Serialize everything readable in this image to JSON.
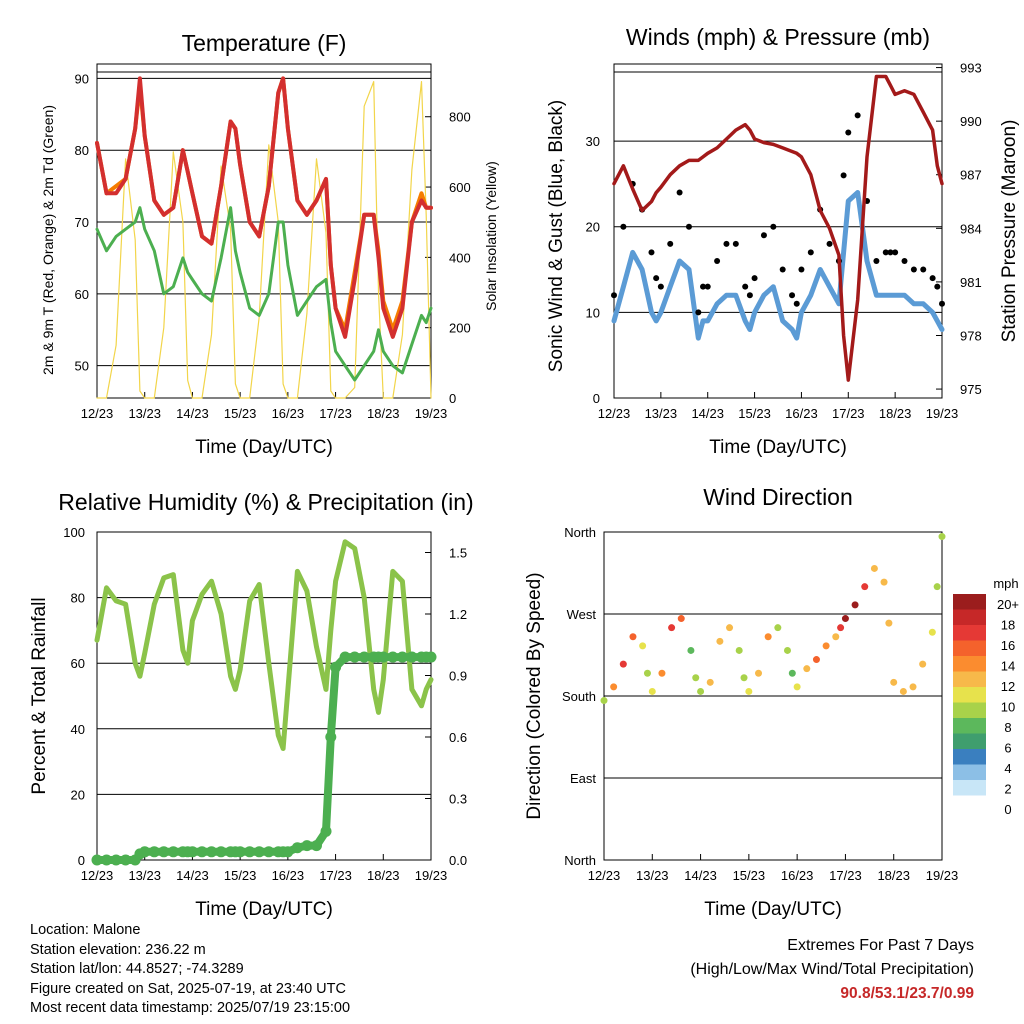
{
  "x_ticks": [
    "12/23",
    "13/23",
    "14/23",
    "15/23",
    "16/23",
    "17/23",
    "18/23",
    "19/23"
  ],
  "x_label": "Time (Day/UTC)",
  "temperature_panel": {
    "title": "Temperature (F)",
    "left_label": "2m & 9m T (Red, Orange) & 2m Td (Green)",
    "right_label": "Solar Insolation (Yellow)",
    "left_ticks": [
      "50",
      "60",
      "70",
      "80",
      "90"
    ],
    "right_ticks": [
      "0",
      "200",
      "400",
      "600",
      "800"
    ]
  },
  "wind_panel": {
    "title": "Winds (mph) & Pressure (mb)",
    "left_label": "Sonic Wind & Gust (Blue, Black)",
    "right_label": "Station Pressure (Maroon)",
    "left_ticks": [
      "0",
      "10",
      "20",
      "30"
    ],
    "right_ticks": [
      "975",
      "978",
      "981",
      "984",
      "987",
      "990",
      "993"
    ]
  },
  "rh_panel": {
    "title": "Relative Humidity (%) & Precipitation (in)",
    "left_label": "Percent & Total Rainfall",
    "left_ticks": [
      "0",
      "20",
      "40",
      "60",
      "80",
      "100"
    ],
    "right_ticks": [
      "0.0",
      "0.3",
      "0.6",
      "0.9",
      "1.2",
      "1.5"
    ]
  },
  "dir_panel": {
    "title": "Wind Direction",
    "left_label": "Direction (Colored By Speed)",
    "dir_ticks": [
      "North",
      "East",
      "South",
      "West",
      "North"
    ],
    "legend_title": "mph",
    "legend_labels": [
      "20+",
      "18",
      "16",
      "14",
      "12",
      "10",
      "8",
      "6",
      "4",
      "2",
      "0"
    ],
    "legend_colors": [
      "#9b1d1d",
      "#c62828",
      "#e53935",
      "#f4622c",
      "#fb8c2f",
      "#f7b94a",
      "#e7e24c",
      "#a8d24a",
      "#5cb85c",
      "#3f9e6e",
      "#3a7fbf",
      "#8cbfe6",
      "#c8e6f7"
    ]
  },
  "info": {
    "location": "Location: Malone",
    "elevation": "Station elevation: 236.22 m",
    "latlon": "Station lat/lon: 44.8527; -74.3289",
    "created": "Figure created on Sat, 2025-07-19, at 23:40 UTC",
    "recent": "Most recent data timestamp: 2025/07/19 23:15:00"
  },
  "extremes": {
    "line1": "Extremes For Past 7 Days",
    "line2": "(High/Low/Max Wind/Total Precipitation)",
    "values": "90.8/53.1/23.7/0.99"
  },
  "chart_data": [
    {
      "type": "line",
      "title": "Temperature (F)",
      "xlabel": "Time (Day/UTC)",
      "ylabel": "2m & 9m T (Red, Orange) & 2m Td (Green)",
      "y2label": "Solar Insolation (Yellow)",
      "ylim": [
        45.5,
        92
      ],
      "y2lim": [
        0,
        950
      ],
      "x": [
        12.0,
        12.2,
        12.4,
        12.6,
        12.8,
        12.9,
        13.0,
        13.2,
        13.4,
        13.6,
        13.8,
        13.9,
        14.0,
        14.2,
        14.4,
        14.6,
        14.8,
        14.9,
        15.0,
        15.2,
        15.4,
        15.6,
        15.8,
        15.9,
        16.0,
        16.2,
        16.4,
        16.6,
        16.8,
        16.9,
        17.0,
        17.2,
        17.4,
        17.6,
        17.8,
        17.9,
        18.0,
        18.2,
        18.4,
        18.6,
        18.8,
        18.9,
        19.0
      ],
      "series": [
        {
          "name": "2m T",
          "values": [
            81,
            74,
            74,
            76,
            83,
            90,
            82,
            73,
            71,
            72,
            80,
            77,
            74,
            68,
            67,
            75,
            84,
            83,
            78,
            70,
            68,
            75,
            88,
            90,
            83,
            73,
            71,
            73,
            76,
            64,
            58,
            54,
            62,
            71,
            71,
            65,
            58,
            54,
            58,
            70,
            73,
            72,
            72
          ]
        },
        {
          "name": "9m T",
          "values": [
            81,
            74,
            75,
            76,
            83,
            89,
            82,
            73,
            71,
            72,
            80,
            77,
            74,
            68,
            67,
            75,
            84,
            83,
            78,
            70,
            68,
            75,
            88,
            90,
            83,
            73,
            71,
            73,
            76,
            64,
            58,
            55,
            63,
            71,
            71,
            66,
            59,
            55,
            59,
            70,
            74,
            72,
            72
          ]
        },
        {
          "name": "2m Td",
          "values": [
            69,
            66,
            68,
            69,
            70,
            72,
            69,
            66,
            60,
            61,
            65,
            63,
            62,
            60,
            59,
            65,
            72,
            66,
            63,
            58,
            57,
            60,
            70,
            70,
            64,
            57,
            59,
            61,
            62,
            56,
            52,
            50,
            48,
            50,
            52,
            55,
            52,
            50,
            49,
            53,
            57,
            56,
            58
          ]
        },
        {
          "name": "Solar Insolation",
          "values": [
            0,
            0,
            150,
            680,
            450,
            20,
            0,
            0,
            200,
            700,
            500,
            50,
            0,
            0,
            180,
            660,
            480,
            40,
            0,
            0,
            230,
            720,
            500,
            40,
            0,
            0,
            240,
            680,
            470,
            20,
            0,
            0,
            30,
            830,
            900,
            300,
            0,
            0,
            180,
            650,
            900,
            520,
            0
          ]
        }
      ]
    },
    {
      "type": "line",
      "title": "Winds (mph) & Pressure (mb)",
      "xlabel": "Time (Day/UTC)",
      "ylabel": "Sonic Wind & Gust (Blue, Black)",
      "y2label": "Station Pressure (Maroon)",
      "ylim": [
        0,
        39
      ],
      "y2lim": [
        974.5,
        993.2
      ],
      "x": [
        12.0,
        12.2,
        12.4,
        12.6,
        12.8,
        12.9,
        13.0,
        13.2,
        13.4,
        13.6,
        13.8,
        13.9,
        14.0,
        14.2,
        14.4,
        14.6,
        14.8,
        14.9,
        15.0,
        15.2,
        15.4,
        15.6,
        15.8,
        15.9,
        16.0,
        16.2,
        16.4,
        16.6,
        16.8,
        16.9,
        17.0,
        17.2,
        17.4,
        17.6,
        17.8,
        17.9,
        18.0,
        18.2,
        18.4,
        18.6,
        18.8,
        18.9,
        19.0
      ],
      "series": [
        {
          "name": "Wind",
          "values": [
            9,
            13,
            17,
            15,
            10,
            9,
            10,
            13,
            16,
            15,
            7,
            9,
            9,
            11,
            12,
            12,
            9,
            8,
            10,
            12,
            13,
            9,
            8,
            7,
            10,
            12,
            15,
            13,
            11,
            17,
            23,
            24,
            16,
            12,
            12,
            12,
            12,
            12,
            11,
            11,
            10,
            9,
            8
          ]
        },
        {
          "name": "Gust",
          "values": [
            12,
            20,
            25,
            22,
            17,
            14,
            13,
            18,
            24,
            20,
            10,
            13,
            13,
            16,
            18,
            18,
            13,
            12,
            14,
            19,
            20,
            15,
            12,
            11,
            15,
            17,
            22,
            18,
            16,
            26,
            31,
            33,
            23,
            16,
            17,
            17,
            17,
            16,
            15,
            15,
            14,
            13,
            11
          ]
        },
        {
          "name": "Pressure",
          "values": [
            986.5,
            987.5,
            986.2,
            985.0,
            985.5,
            986.0,
            986.3,
            987.0,
            987.5,
            987.8,
            987.8,
            988.0,
            988.2,
            988.5,
            989.0,
            989.5,
            989.8,
            989.5,
            989.0,
            988.8,
            988.7,
            988.5,
            988.3,
            988.2,
            988.0,
            987.0,
            985.0,
            984.0,
            982.5,
            978.0,
            975.5,
            980.0,
            988.0,
            992.5,
            992.5,
            992.0,
            991.5,
            991.7,
            991.5,
            990.5,
            989.5,
            987.5,
            986.5
          ]
        }
      ]
    },
    {
      "type": "line",
      "title": "Relative Humidity (%) & Precipitation (in)",
      "xlabel": "Time (Day/UTC)",
      "ylabel": "Percent & Total Rainfall",
      "ylim": [
        0,
        100
      ],
      "y2lim": [
        0,
        1.6
      ],
      "x": [
        12.0,
        12.2,
        12.4,
        12.6,
        12.8,
        12.9,
        13.0,
        13.2,
        13.4,
        13.6,
        13.8,
        13.9,
        14.0,
        14.2,
        14.4,
        14.6,
        14.8,
        14.9,
        15.0,
        15.2,
        15.4,
        15.6,
        15.8,
        15.9,
        16.0,
        16.2,
        16.4,
        16.6,
        16.8,
        16.9,
        17.0,
        17.2,
        17.4,
        17.6,
        17.8,
        17.9,
        18.0,
        18.2,
        18.4,
        18.6,
        18.8,
        18.9,
        19.0
      ],
      "series": [
        {
          "name": "Relative Humidity",
          "values": [
            67,
            83,
            79,
            78,
            60,
            56,
            63,
            78,
            86,
            87,
            64,
            60,
            73,
            81,
            85,
            75,
            56,
            52,
            58,
            79,
            84,
            60,
            38,
            34,
            52,
            88,
            82,
            65,
            52,
            70,
            85,
            97,
            95,
            80,
            52,
            45,
            55,
            88,
            85,
            52,
            47,
            52,
            55
          ]
        },
        {
          "name": "Total Rainfall",
          "values": [
            0,
            0,
            0,
            0,
            0,
            0.03,
            0.04,
            0.04,
            0.04,
            0.04,
            0.04,
            0.04,
            0.04,
            0.04,
            0.04,
            0.04,
            0.04,
            0.04,
            0.04,
            0.04,
            0.04,
            0.04,
            0.04,
            0.04,
            0.04,
            0.06,
            0.07,
            0.07,
            0.14,
            0.6,
            0.94,
            0.99,
            0.99,
            0.99,
            0.99,
            0.99,
            0.99,
            0.99,
            0.99,
            0.99,
            0.99,
            0.99,
            0.99
          ]
        }
      ]
    },
    {
      "type": "scatter",
      "title": "Wind Direction",
      "xlabel": "Time (Day/UTC)",
      "ylabel": "Direction (Colored By Speed)",
      "ylim": [
        0,
        360
      ],
      "y_ticks": {
        "0": "North",
        "90": "East",
        "180": "South",
        "270": "West",
        "360": "North"
      },
      "x": [
        12.0,
        12.2,
        12.4,
        12.6,
        12.8,
        12.9,
        13.0,
        13.2,
        13.4,
        13.6,
        13.8,
        13.9,
        14.0,
        14.2,
        14.4,
        14.6,
        14.8,
        14.9,
        15.0,
        15.2,
        15.4,
        15.6,
        15.8,
        15.9,
        16.0,
        16.2,
        16.4,
        16.6,
        16.8,
        16.9,
        17.0,
        17.2,
        17.4,
        17.6,
        17.8,
        17.9,
        18.0,
        18.2,
        18.4,
        18.6,
        18.8,
        18.9,
        19.0
      ],
      "series": [
        {
          "name": "Direction",
          "values": [
            175,
            190,
            215,
            245,
            235,
            205,
            185,
            205,
            255,
            265,
            230,
            200,
            185,
            195,
            240,
            255,
            230,
            200,
            185,
            205,
            245,
            255,
            230,
            205,
            190,
            210,
            220,
            235,
            245,
            255,
            265,
            280,
            300,
            320,
            305,
            260,
            195,
            185,
            190,
            215,
            250,
            300,
            355
          ]
        },
        {
          "name": "Speed",
          "values": [
            9,
            13,
            17,
            15,
            10,
            9,
            10,
            13,
            16,
            15,
            7,
            9,
            9,
            11,
            12,
            12,
            9,
            8,
            10,
            12,
            13,
            9,
            8,
            7,
            10,
            12,
            15,
            13,
            11,
            17,
            23,
            24,
            16,
            12,
            12,
            12,
            12,
            12,
            11,
            11,
            10,
            9,
            8
          ]
        }
      ]
    }
  ]
}
